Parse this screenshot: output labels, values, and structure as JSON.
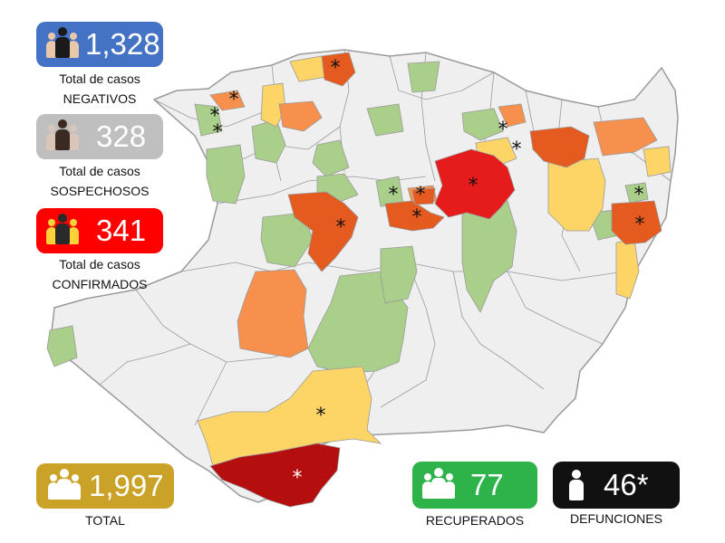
{
  "legend": {
    "negativos": {
      "count": "1,328",
      "line1": "Total de casos",
      "line2": "NEGATIVOS",
      "color": "#4472c4",
      "icon": "group-person-icon"
    },
    "sospechosos": {
      "count": "328",
      "line1": "Total de casos",
      "line2": "SOSPECHOSOS",
      "color": "#bfbfbf",
      "icon": "group-person-icon"
    },
    "confirmados": {
      "count": "341",
      "line1": "Total de casos",
      "line2": "CONFIRMADOS",
      "color": "#ff0000",
      "icon": "group-person-icon"
    }
  },
  "summary": {
    "total": {
      "count": "1,997",
      "label": "TOTAL",
      "color": "#c9a227",
      "icon": "group-person-icon"
    },
    "recuperados": {
      "count": "77",
      "label": "RECUPERADOS",
      "color": "#2db34a",
      "icon": "group-person-icon"
    },
    "defunciones": {
      "count": "46*",
      "label": "DEFUNCIONES",
      "color": "#111111",
      "icon": "single-person-icon"
    }
  },
  "map": {
    "asterisk": "*",
    "colors": {
      "border": "#9a9a9a",
      "none": "#efefef",
      "low": "#a9cf8a",
      "medium": "#fdd567",
      "high": "#f78f4d",
      "very_high": "#e55a1e",
      "severe": "#e61b1b",
      "critical": "#b50e0e"
    }
  }
}
